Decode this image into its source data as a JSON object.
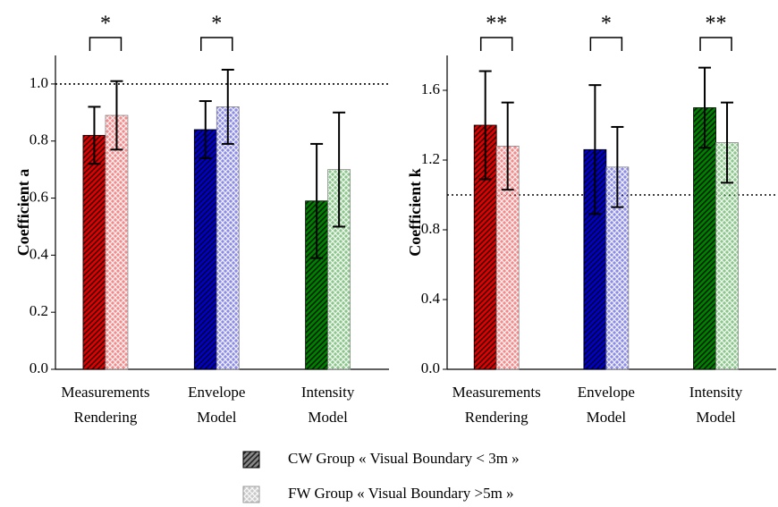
{
  "chart_data": [
    {
      "type": "bar",
      "ylabel": "Coefficient a",
      "categories": [
        [
          "Measurements",
          "Rendering"
        ],
        [
          "Envelope",
          "Model"
        ],
        [
          "Intensity",
          "Model"
        ]
      ],
      "colors": [
        "#e00000",
        "#0000c8",
        "#008000"
      ],
      "series": [
        {
          "pattern": "hatch",
          "values": [
            0.82,
            0.84,
            0.59
          ],
          "errors": [
            0.1,
            0.1,
            0.2
          ]
        },
        {
          "pattern": "cross",
          "values": [
            0.89,
            0.92,
            0.7
          ],
          "errors": [
            0.12,
            0.13,
            0.2
          ]
        }
      ],
      "significance": [
        "*",
        "*",
        null
      ],
      "reference_line": 1.0,
      "ylim": [
        0,
        1.1
      ],
      "yticks": [
        {
          "value": 0,
          "label": "0.0"
        },
        0.2,
        0.4,
        0.6,
        0.8,
        {
          "value": 1,
          "label": "1.0"
        }
      ]
    },
    {
      "type": "bar",
      "ylabel": "Coefficient k",
      "categories": [
        [
          "Measurements",
          "Rendering"
        ],
        [
          "Envelope",
          "Model"
        ],
        [
          "Intensity",
          "Model"
        ]
      ],
      "colors": [
        "#e00000",
        "#0000c8",
        "#008000"
      ],
      "series": [
        {
          "pattern": "hatch",
          "values": [
            1.4,
            1.26,
            1.5
          ],
          "errors": [
            0.31,
            0.37,
            0.23
          ]
        },
        {
          "pattern": "cross",
          "values": [
            1.28,
            1.16,
            1.3
          ],
          "errors": [
            0.25,
            0.23,
            0.23
          ]
        }
      ],
      "significance": [
        "**",
        "*",
        "**"
      ],
      "reference_line": 1.0,
      "ylim": [
        0,
        1.8
      ],
      "yticks": [
        {
          "value": 0,
          "label": "0.0"
        },
        0.4,
        0.8,
        1.2,
        1.6
      ]
    }
  ],
  "legend": {
    "items": [
      {
        "pattern": "hatch",
        "label": "CW Group « Visual Boundary < 3m »"
      },
      {
        "pattern": "cross",
        "label": "FW Group « Visual Boundary >5m »"
      }
    ]
  }
}
